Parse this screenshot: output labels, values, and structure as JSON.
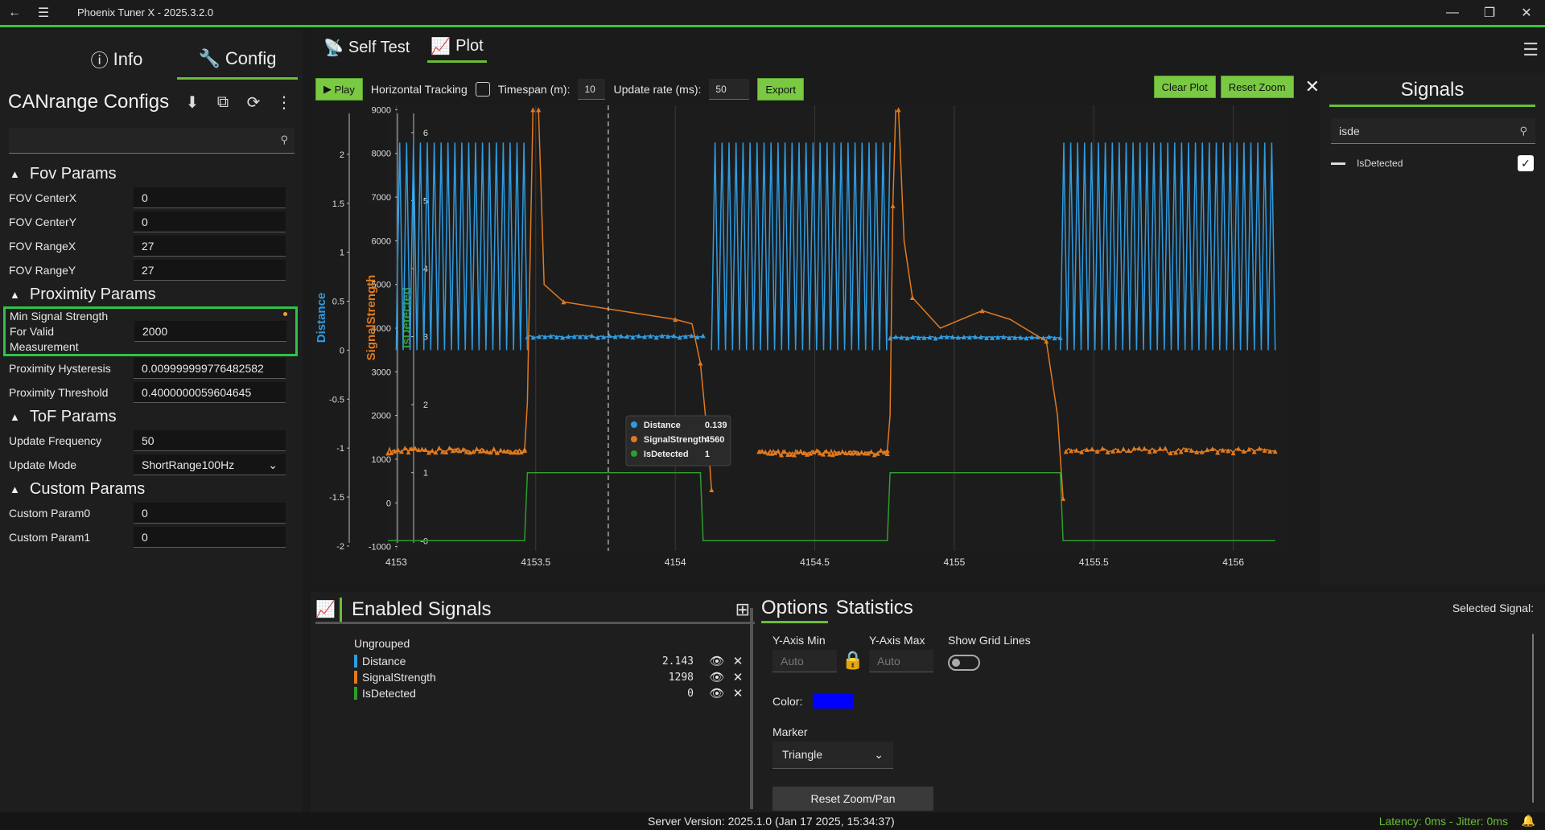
{
  "titlebar": {
    "title": "Phoenix Tuner X - 2025.3.2.0"
  },
  "left": {
    "tabs": [
      {
        "label": "Info"
      },
      {
        "label": "Config"
      }
    ],
    "config_title": "CANrange Configs",
    "search_placeholder": "",
    "sections": {
      "fov": {
        "title": "Fov Params",
        "rows": [
          {
            "label": "FOV CenterX",
            "value": "0"
          },
          {
            "label": "FOV CenterY",
            "value": "0"
          },
          {
            "label": "FOV RangeX",
            "value": "27"
          },
          {
            "label": "FOV RangeY",
            "value": "27"
          }
        ]
      },
      "proximity": {
        "title": "Proximity Params",
        "min_signal": {
          "label_l1": "Min Signal Strength",
          "label_l2": "For Valid",
          "label_l3": "Measurement",
          "value": "2000"
        },
        "rows": [
          {
            "label": "Proximity Hysteresis",
            "value": "0.009999999776482582"
          },
          {
            "label": "Proximity Threshold",
            "value": "0.4000000059604645"
          }
        ]
      },
      "tof": {
        "title": "ToF Params",
        "rows": [
          {
            "label": "Update Frequency",
            "value": "50"
          },
          {
            "label": "Update Mode",
            "value": "ShortRange100Hz"
          }
        ]
      },
      "custom": {
        "title": "Custom Params",
        "rows": [
          {
            "label": "Custom Param0",
            "value": "0"
          },
          {
            "label": "Custom Param1",
            "value": "0"
          }
        ]
      }
    }
  },
  "main": {
    "tabs": [
      {
        "label": "Self Test"
      },
      {
        "label": "Plot"
      }
    ],
    "toolbar": {
      "play": "Play",
      "horizontal_tracking": "Horizontal Tracking",
      "timespan_label": "Timespan (m):",
      "timespan_value": "10",
      "update_rate_label": "Update rate (ms):",
      "update_rate_value": "50",
      "export": "Export",
      "clear_plot": "Clear Plot",
      "reset_zoom": "Reset Zoom"
    },
    "signals_panel": {
      "title": "Signals",
      "search_value": "isde",
      "items": [
        {
          "label": "IsDetected",
          "checked": true
        }
      ]
    }
  },
  "chart_data": {
    "type": "line",
    "x_ticks": [
      "4153",
      "4153.5",
      "4154",
      "4154.5",
      "4155",
      "4155.5",
      "4156"
    ],
    "xlim": [
      4152.97,
      4156.2
    ],
    "axes": [
      {
        "label": "Distance",
        "color": "#2f9be0",
        "ticks": [
          "2",
          "1.5",
          "1",
          "0.5",
          "0",
          "-0.5",
          "-1",
          "-1.5",
          "-2"
        ],
        "ylim": [
          -2.05,
          2.5
        ]
      },
      {
        "label": "SignalStrength",
        "color": "#e07a1f",
        "ticks": [
          "9000",
          "8000",
          "7000",
          "6000",
          "5000",
          "4000",
          "3000",
          "2000",
          "1000",
          "0",
          "-1000"
        ],
        "ylim": [
          -1100,
          9100
        ]
      },
      {
        "label": "IsDetected",
        "color": "#2e9d2e",
        "ticks": [
          "6",
          "5",
          "4",
          "3",
          "2",
          "1",
          "-0"
        ],
        "ylim": [
          -0.15,
          6.4
        ]
      }
    ],
    "series": [
      {
        "name": "Distance",
        "color": "#2f9be0",
        "segments": [
          {
            "kind": "osc",
            "x0": 4153.0,
            "x1": 4153.47,
            "lo": 0,
            "hi": 2.12
          },
          {
            "kind": "flat",
            "x0": 4153.47,
            "x1": 4154.1,
            "y": 0.14
          },
          {
            "kind": "osc",
            "x0": 4154.13,
            "x1": 4154.77,
            "lo": 0,
            "hi": 2.12
          },
          {
            "kind": "flat",
            "x0": 4154.77,
            "x1": 4155.38,
            "y": 0.13
          },
          {
            "kind": "osc",
            "x0": 4155.38,
            "x1": 4156.15,
            "lo": 0,
            "hi": 2.12
          }
        ]
      },
      {
        "name": "SignalStrength",
        "color": "#e07a1f",
        "segments": [
          {
            "kind": "noisy",
            "x0": 4152.97,
            "x1": 4153.46,
            "y": 1200
          },
          {
            "kind": "ramp",
            "points": [
              [
                4153.46,
                1200
              ],
              [
                4153.47,
                2300
              ],
              [
                4153.49,
                9000
              ]
            ]
          },
          {
            "kind": "ramp",
            "points": [
              [
                4153.51,
                9000
              ],
              [
                4153.53,
                5000
              ],
              [
                4153.6,
                4600
              ],
              [
                4153.8,
                4400
              ],
              [
                4154.0,
                4200
              ],
              [
                4154.06,
                4100
              ],
              [
                4154.09,
                3200
              ],
              [
                4154.12,
                1200
              ],
              [
                4154.13,
                300
              ]
            ]
          },
          {
            "kind": "noisy",
            "x0": 4154.3,
            "x1": 4154.76,
            "y": 1150
          },
          {
            "kind": "ramp",
            "points": [
              [
                4154.76,
                1200
              ],
              [
                4154.77,
                2000
              ],
              [
                4154.78,
                6800
              ],
              [
                4154.79,
                9000
              ]
            ]
          },
          {
            "kind": "ramp",
            "points": [
              [
                4154.8,
                9000
              ],
              [
                4154.82,
                6000
              ],
              [
                4154.85,
                4700
              ],
              [
                4154.95,
                4000
              ],
              [
                4155.1,
                4400
              ],
              [
                4155.2,
                4200
              ],
              [
                4155.33,
                3700
              ],
              [
                4155.37,
                2000
              ],
              [
                4155.39,
                100
              ]
            ]
          },
          {
            "kind": "noisy",
            "x0": 4155.4,
            "x1": 4156.15,
            "y": 1200
          }
        ]
      },
      {
        "name": "IsDetected",
        "color": "#2e9d2e",
        "segments": [
          {
            "kind": "steps",
            "points": [
              [
                4152.97,
                0
              ],
              [
                4153.46,
                0
              ],
              [
                4153.47,
                1
              ],
              [
                4154.09,
                1
              ],
              [
                4154.1,
                0
              ],
              [
                4154.76,
                0
              ],
              [
                4154.77,
                1
              ],
              [
                4155.38,
                1
              ],
              [
                4155.39,
                0
              ],
              [
                4156.15,
                0
              ]
            ]
          }
        ]
      }
    ],
    "cursor_x": 4153.76,
    "tooltip": [
      {
        "name": "Distance",
        "value": "0.139",
        "color": "#2f9be0"
      },
      {
        "name": "SignalStrength",
        "value": "4560",
        "color": "#e07a1f"
      },
      {
        "name": "IsDetected",
        "value": "1",
        "color": "#2e9d2e"
      }
    ],
    "grid": true
  },
  "bottom": {
    "enabled_title": "Enabled Signals",
    "group": "Ungrouped",
    "signals": [
      {
        "name": "Distance",
        "value": "2.143",
        "color": "#2f9be0"
      },
      {
        "name": "SignalStrength",
        "value": "1298",
        "color": "#e07a1f"
      },
      {
        "name": "IsDetected",
        "value": "0",
        "color": "#2e9d2e"
      }
    ],
    "tabs": {
      "options": "Options",
      "statistics": "Statistics"
    },
    "selected_signal_label": "Selected Signal:",
    "ymin_label": "Y-Axis Min",
    "ymax_label": "Y-Axis Max",
    "auto_placeholder": "Auto",
    "grid_lines_label": "Show Grid Lines",
    "color_label": "Color:",
    "color_value": "#0000ff",
    "marker_label": "Marker",
    "marker_value": "Triangle",
    "reset_zoom_pan": "Reset Zoom/Pan"
  },
  "status": {
    "server": "Server Version:  2025.1.0 (Jan 17 2025, 15:34:37)",
    "latency": "Latency: 0ms - Jitter: 0ms"
  }
}
